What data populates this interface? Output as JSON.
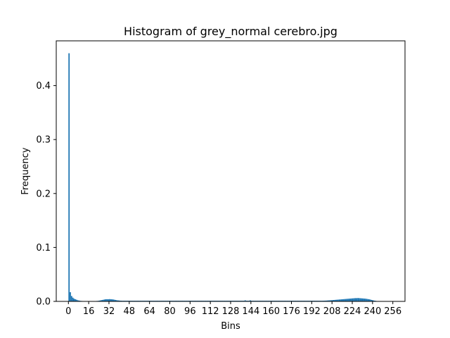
{
  "chart_data": {
    "type": "bar",
    "title": "Histogram of grey_normal cerebro.jpg",
    "xlabel": "Bins",
    "ylabel": "Frequency",
    "xlim": [
      -9.6,
      265.6
    ],
    "ylim": [
      0,
      0.483
    ],
    "xticks": [
      0,
      16,
      32,
      48,
      64,
      80,
      96,
      112,
      128,
      144,
      160,
      176,
      192,
      208,
      224,
      240,
      256
    ],
    "yticks": [
      0.0,
      0.1,
      0.2,
      0.3,
      0.4
    ],
    "ytick_labels": [
      "0.0",
      "0.1",
      "0.2",
      "0.3",
      "0.4"
    ],
    "bar_color": "#1f77b4",
    "grid": false,
    "values": [
      0.46,
      0.017,
      0.01,
      0.007,
      0.005,
      0.004,
      0.003,
      0.002,
      0.0015,
      0.001,
      0.0008,
      0.0006,
      0.0005,
      0.0005,
      0.0005,
      0.0005,
      0.0005,
      0.0005,
      0.0005,
      0.0005,
      0.0005,
      0.0006,
      0.0008,
      0.001,
      0.0015,
      0.002,
      0.0025,
      0.003,
      0.0035,
      0.004,
      0.004,
      0.004,
      0.0042,
      0.004,
      0.0038,
      0.0035,
      0.003,
      0.0025,
      0.002,
      0.0018,
      0.0015,
      0.0013,
      0.0012,
      0.0012,
      0.0012,
      0.0012,
      0.0012,
      0.0012,
      0.0012,
      0.0012,
      0.0012,
      0.0012,
      0.0012,
      0.0012,
      0.0012,
      0.0012,
      0.0012,
      0.0012,
      0.0012,
      0.0012,
      0.0012,
      0.0012,
      0.0012,
      0.0012,
      0.0012,
      0.0012,
      0.0012,
      0.0012,
      0.0012,
      0.0012,
      0.0012,
      0.0012,
      0.0012,
      0.0012,
      0.0012,
      0.0012,
      0.0012,
      0.0012,
      0.0012,
      0.0012,
      0.0012,
      0.0012,
      0.0012,
      0.0012,
      0.0012,
      0.0012,
      0.0012,
      0.0012,
      0.0012,
      0.0012,
      0.0012,
      0.0012,
      0.0012,
      0.0012,
      0.0012,
      0.0012,
      0.0012,
      0.0012,
      0.0012,
      0.0012,
      0.0012,
      0.0012,
      0.0012,
      0.0012,
      0.0012,
      0.0012,
      0.0012,
      0.0012,
      0.0012,
      0.0012,
      0.0012,
      0.0012,
      0.0012,
      0.0012,
      0.0012,
      0.0012,
      0.0012,
      0.0012,
      0.0012,
      0.0012,
      0.0012,
      0.0012,
      0.0012,
      0.0012,
      0.0012,
      0.0012,
      0.0012,
      0.0012,
      0.0012,
      0.0012,
      0.0012,
      0.0012,
      0.0012,
      0.0012,
      0.0012,
      0.0012,
      0.0012,
      0.0012,
      0.0012,
      0.002,
      0.0012,
      0.0012,
      0.0012,
      0.002,
      0.0012,
      0.0012,
      0.0012,
      0.0012,
      0.0012,
      0.0012,
      0.0012,
      0.0012,
      0.0012,
      0.0012,
      0.0012,
      0.0012,
      0.0012,
      0.0012,
      0.0012,
      0.0012,
      0.0012,
      0.0012,
      0.0012,
      0.0012,
      0.0012,
      0.0012,
      0.0012,
      0.0012,
      0.0012,
      0.0012,
      0.0012,
      0.0012,
      0.0012,
      0.0012,
      0.0012,
      0.0012,
      0.0012,
      0.0012,
      0.0012,
      0.0012,
      0.0012,
      0.0012,
      0.0012,
      0.0012,
      0.0012,
      0.0012,
      0.0012,
      0.0012,
      0.0012,
      0.0012,
      0.0012,
      0.0012,
      0.0012,
      0.0012,
      0.0012,
      0.0012,
      0.0012,
      0.0012,
      0.0012,
      0.0012,
      0.0012,
      0.0013,
      0.0014,
      0.0015,
      0.0017,
      0.0019,
      0.002,
      0.0022,
      0.0024,
      0.0026,
      0.0028,
      0.003,
      0.0032,
      0.0034,
      0.0036,
      0.0038,
      0.004,
      0.0042,
      0.0044,
      0.0046,
      0.0048,
      0.005,
      0.0052,
      0.0054,
      0.0056,
      0.0058,
      0.006,
      0.006,
      0.0062,
      0.006,
      0.0058,
      0.0056,
      0.0054,
      0.0052,
      0.005,
      0.0046,
      0.0042,
      0.0038,
      0.0032,
      0.0026,
      0.002,
      0.0014,
      0.001,
      0.0005,
      0.0003,
      0.0002,
      0.0001,
      0.0001,
      0.0001,
      0.0001,
      0.0001,
      0.0001,
      0.0001,
      0.0001,
      0.0001,
      0.0001,
      0.0001,
      0.0001,
      0.0001
    ]
  }
}
